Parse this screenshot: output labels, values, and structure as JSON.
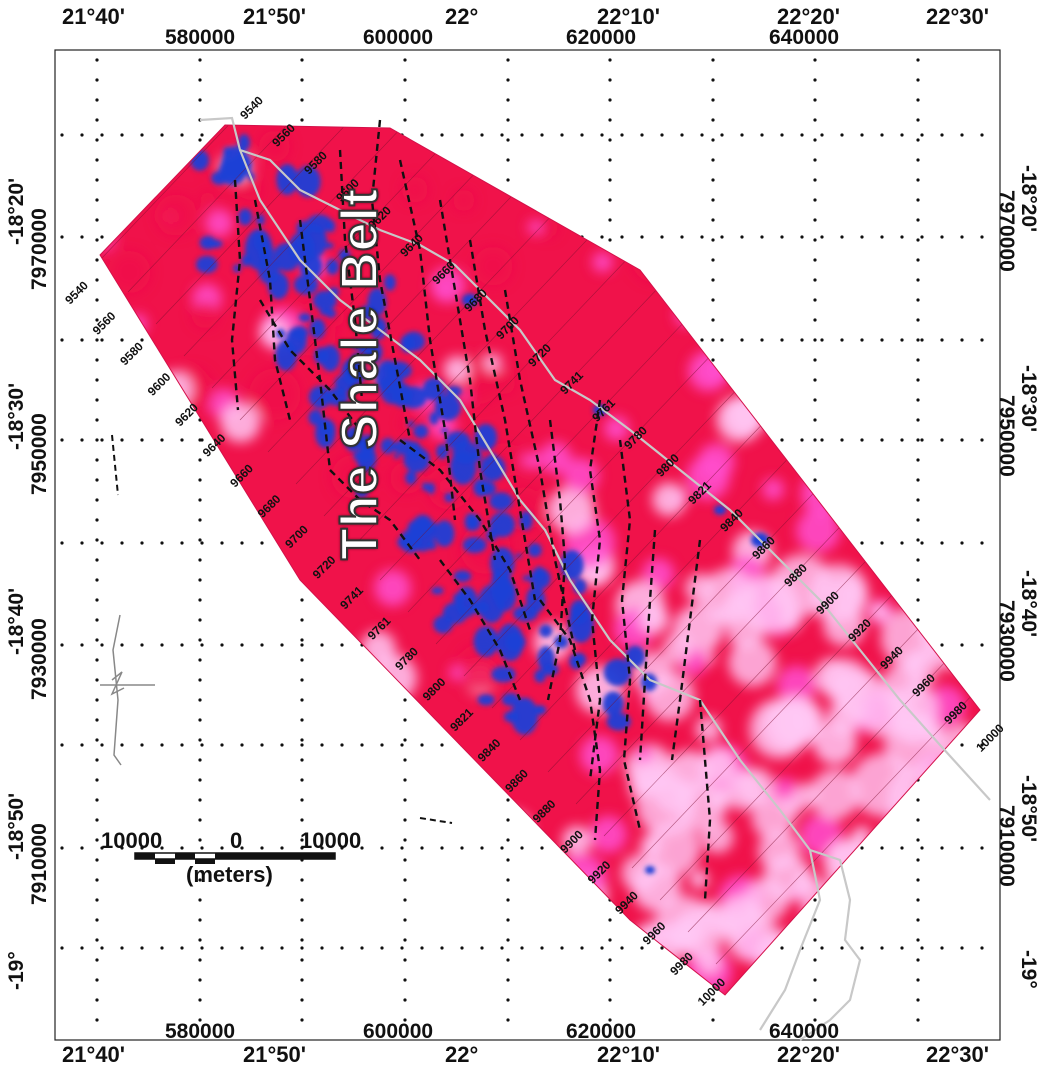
{
  "map": {
    "title": "The Shale Belt",
    "top_degree_labels": [
      "21°40'",
      "21°50'",
      "22°",
      "22°10'",
      "22°20'",
      "22°30'"
    ],
    "top_utm_labels": [
      "580000",
      "600000",
      "620000",
      "640000"
    ],
    "bottom_degree_labels": [
      "21°40'",
      "21°50'",
      "22°",
      "22°10'",
      "22°20'",
      "22°30'"
    ],
    "bottom_utm_labels": [
      "580000",
      "600000",
      "620000",
      "640000"
    ],
    "left_degree_labels": [
      "-18°20'",
      "-18°30'",
      "-18°40'",
      "-18°50'",
      "-19°"
    ],
    "left_utm_labels": [
      "7970000",
      "7950000",
      "7930000",
      "7910000"
    ],
    "right_degree_labels": [
      "-18°20'",
      "-18°30'",
      "-18°40'",
      "-18°50'",
      "-19°"
    ],
    "right_utm_labels": [
      "7970000",
      "7950000",
      "7930000",
      "7910000"
    ],
    "line_labels_left": [
      "9540",
      "9560",
      "9580",
      "9600",
      "9620",
      "9640",
      "9660",
      "9680",
      "9700",
      "9720",
      "9741",
      "9761",
      "9780",
      "9800",
      "9821",
      "9840",
      "9860",
      "9880",
      "9900",
      "9920",
      "9940",
      "9960",
      "9980",
      "10000"
    ],
    "line_labels_right": [
      "9540",
      "9560",
      "9580",
      "9600",
      "9620",
      "9640",
      "9660",
      "9680",
      "9700",
      "9720",
      "9741",
      "9761",
      "9780",
      "9800",
      "9821",
      "9840",
      "9860",
      "9880",
      "9900",
      "9920",
      "9940",
      "9960",
      "9980",
      "10000"
    ],
    "scale_bar": {
      "left_label": "10000",
      "mid_label": "0",
      "right_label": "10000",
      "unit_label": "(meters)"
    },
    "colors": {
      "background": "#ffffff",
      "high": "#f0124a",
      "mid": "#ff4fd0",
      "low": "#ffc8f5",
      "anomaly_blue": "#1f3fd6",
      "river": "#c8c8c8",
      "fault": "#111111"
    }
  }
}
